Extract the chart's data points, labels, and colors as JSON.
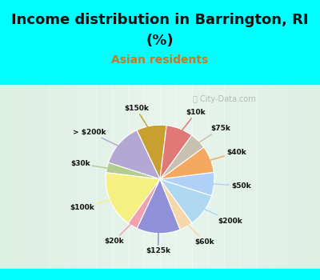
{
  "title_line1": "Income distribution in Barrington, RI",
  "title_line2": "(%)",
  "subtitle": "Asian residents",
  "title_color": "#111111",
  "subtitle_color": "#cc7722",
  "bg_top_color": "#00ffff",
  "chart_bg_left": "#c8e8d8",
  "chart_bg_right": "#e8f8f0",
  "watermark": "City-Data.com",
  "labels": [
    "$150k",
    "> $200k",
    "$30k",
    "$100k",
    "$20k",
    "$125k",
    "$60k",
    "$200k",
    "$50k",
    "$40k",
    "$75k",
    "$10k"
  ],
  "values": [
    9,
    13,
    3,
    17,
    3,
    13,
    4,
    10,
    7,
    8,
    5,
    8
  ],
  "colors": [
    "#c8a030",
    "#b3a8d4",
    "#b0cc90",
    "#f5f080",
    "#f0a0b0",
    "#9090d8",
    "#f5d8a8",
    "#add8f0",
    "#b0d0f8",
    "#f5a860",
    "#c8c0b0",
    "#e07878"
  ],
  "start_angle": 83
}
